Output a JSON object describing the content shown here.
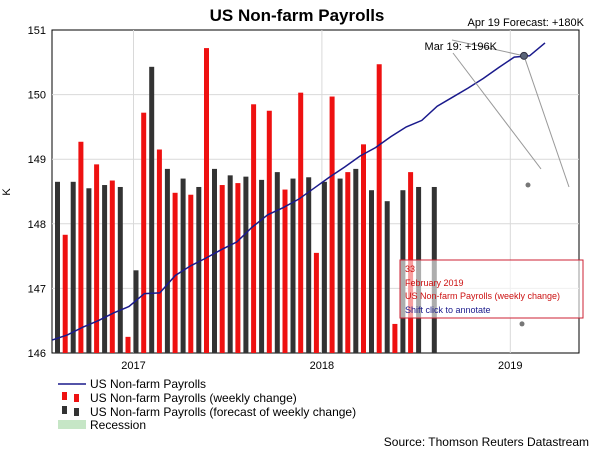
{
  "chart_data": {
    "type": "bar",
    "title": "US Non-farm Payrolls",
    "ylabel": "K",
    "ylim": [
      146,
      151
    ],
    "yticks": [
      "146",
      "147",
      "148",
      "149",
      "150",
      "151"
    ],
    "xticks": [
      {
        "label": "2017",
        "at": 5
      },
      {
        "label": "2018",
        "at": 17
      },
      {
        "label": "2019",
        "at": 29
      }
    ],
    "grid": true,
    "series": [
      {
        "name": "US Non-farm Payrolls",
        "kind": "line",
        "color": "#1a1a8c",
        "values": [
          146.2,
          146.28,
          146.4,
          146.5,
          146.62,
          146.72,
          146.92,
          146.93,
          147.2,
          147.35,
          147.47,
          147.6,
          147.72,
          147.95,
          148.14,
          148.25,
          148.38,
          148.55,
          148.72,
          148.88,
          149.05,
          149.18,
          149.35,
          149.5,
          149.6,
          149.82,
          149.96,
          150.1,
          150.25,
          150.42,
          150.58,
          150.6,
          150.8
        ]
      },
      {
        "name": "US Non-farm Payrolls (weekly change)",
        "kind": "bar",
        "color": "#ee1111",
        "values": [
          147.83,
          149.27,
          148.92,
          148.67,
          146.25,
          149.72,
          149.15,
          148.48,
          148.45,
          150.72,
          148.6,
          148.63,
          149.85,
          149.75,
          148.53,
          150.03,
          147.55,
          149.97,
          148.8,
          149.23,
          150.47,
          146.45,
          148.8
        ]
      },
      {
        "name": "US Non-farm Payrolls (forecast of weekly change)",
        "kind": "bar",
        "color": "#333333",
        "values": [
          148.65,
          148.65,
          148.55,
          148.6,
          148.57,
          147.28,
          150.43,
          148.85,
          148.7,
          148.57,
          148.85,
          148.75,
          148.73,
          148.68,
          148.8,
          148.7,
          148.72,
          148.65,
          148.7,
          148.85,
          148.52,
          148.35,
          148.52,
          148.57,
          148.57
        ]
      },
      {
        "name": "Recession",
        "kind": "area",
        "color": "#c6e6c6",
        "values": []
      }
    ],
    "annotations": [
      {
        "text": "Apr 19 Forecast: +180K"
      },
      {
        "text": "Mar 19: +196K"
      }
    ],
    "tooltip": {
      "value": "33",
      "date": "February 2019",
      "series": "US Non-farm Payrolls (weekly change)",
      "hint": "Shift click to annotate"
    },
    "legend_position": "bottom-left",
    "source": "Source: Thomson Reuters Datastream"
  }
}
